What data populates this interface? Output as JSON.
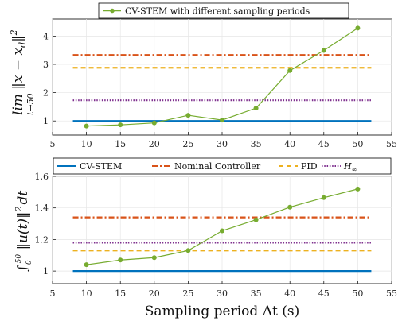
{
  "chart_data": [
    {
      "type": "line",
      "ylabel": "lim_{t→50} ||x − x_d||²",
      "ylabel_main": "lim ‖x − x",
      "ylabel_sub_d": "d",
      "ylabel_sup": "‖",
      "ylabel_power": "2",
      "ylabel_limit": "t→50",
      "xlim": [
        5,
        55
      ],
      "ylim": [
        0.5,
        4.6
      ],
      "xticks": [
        "5",
        "10",
        "15",
        "20",
        "25",
        "30",
        "35",
        "40",
        "45",
        "50",
        "55"
      ],
      "yticks": [
        "1",
        "2",
        "3",
        "4"
      ],
      "legend": {
        "position": "top-center",
        "label": "CV-STEM with different sampling periods"
      },
      "series": [
        {
          "name": "CV-STEM with different sampling periods",
          "style": "line-marker",
          "color": "#77ac30",
          "x": [
            10,
            15,
            20,
            25,
            30,
            35,
            40,
            45,
            50
          ],
          "y": [
            0.82,
            0.86,
            0.93,
            1.2,
            1.03,
            1.45,
            2.78,
            3.49,
            4.28
          ]
        },
        {
          "name": "CV-STEM",
          "style": "solid",
          "color": "#0072bd",
          "x": [
            8,
            52
          ],
          "y": [
            1.0,
            1.0
          ]
        },
        {
          "name": "Nominal Controller",
          "style": "dashdot",
          "color": "#d95319",
          "x": [
            8,
            52
          ],
          "y": [
            3.33,
            3.33
          ]
        },
        {
          "name": "PID",
          "style": "dashed",
          "color": "#edb120",
          "x": [
            8,
            52
          ],
          "y": [
            2.88,
            2.88
          ]
        },
        {
          "name": "H∞",
          "style": "dotted",
          "color": "#7e2f8e",
          "x": [
            8,
            52
          ],
          "y": [
            1.73,
            1.73
          ]
        }
      ]
    },
    {
      "type": "line",
      "ylabel": "∫₀⁵⁰ ||u(t)||² dt",
      "ylabel_text": "∫",
      "ylabel_lower": "0",
      "ylabel_upper": "50",
      "ylabel_body": " ‖u(t)‖",
      "ylabel_power": "2",
      "ylabel_dt": "dt",
      "xlabel": "Sampling period Δt (s)",
      "xlim": [
        5,
        55
      ],
      "ylim": [
        0.92,
        1.6
      ],
      "xticks": [
        "5",
        "10",
        "15",
        "20",
        "25",
        "30",
        "35",
        "40",
        "45",
        "50",
        "55"
      ],
      "yticks": [
        "1",
        "1.2",
        "1.4",
        "1.6"
      ],
      "legend": {
        "position": "top",
        "entries": [
          {
            "label": "CV-STEM",
            "style": "solid",
            "color": "#0072bd"
          },
          {
            "label": "Nominal Controller",
            "style": "dashdot",
            "color": "#d95319"
          },
          {
            "label": "PID",
            "style": "dashed",
            "color": "#edb120"
          },
          {
            "label": "H",
            "sub": "∞",
            "style": "dotted",
            "color": "#7e2f8e"
          }
        ]
      },
      "series": [
        {
          "name": "CV-STEM with different sampling periods",
          "style": "line-marker",
          "color": "#77ac30",
          "x": [
            10,
            15,
            20,
            25,
            30,
            35,
            40,
            45,
            50
          ],
          "y": [
            1.04,
            1.07,
            1.085,
            1.13,
            1.255,
            1.325,
            1.405,
            1.465,
            1.52
          ]
        },
        {
          "name": "CV-STEM",
          "style": "solid",
          "color": "#0072bd",
          "x": [
            8,
            52
          ],
          "y": [
            1.0,
            1.0
          ]
        },
        {
          "name": "Nominal Controller",
          "style": "dashdot",
          "color": "#d95319",
          "x": [
            8,
            52
          ],
          "y": [
            1.34,
            1.34
          ]
        },
        {
          "name": "PID",
          "style": "dashed",
          "color": "#edb120",
          "x": [
            8,
            52
          ],
          "y": [
            1.13,
            1.13
          ]
        },
        {
          "name": "H∞",
          "style": "dotted",
          "color": "#7e2f8e",
          "x": [
            8,
            52
          ],
          "y": [
            1.18,
            1.18
          ]
        }
      ]
    }
  ]
}
